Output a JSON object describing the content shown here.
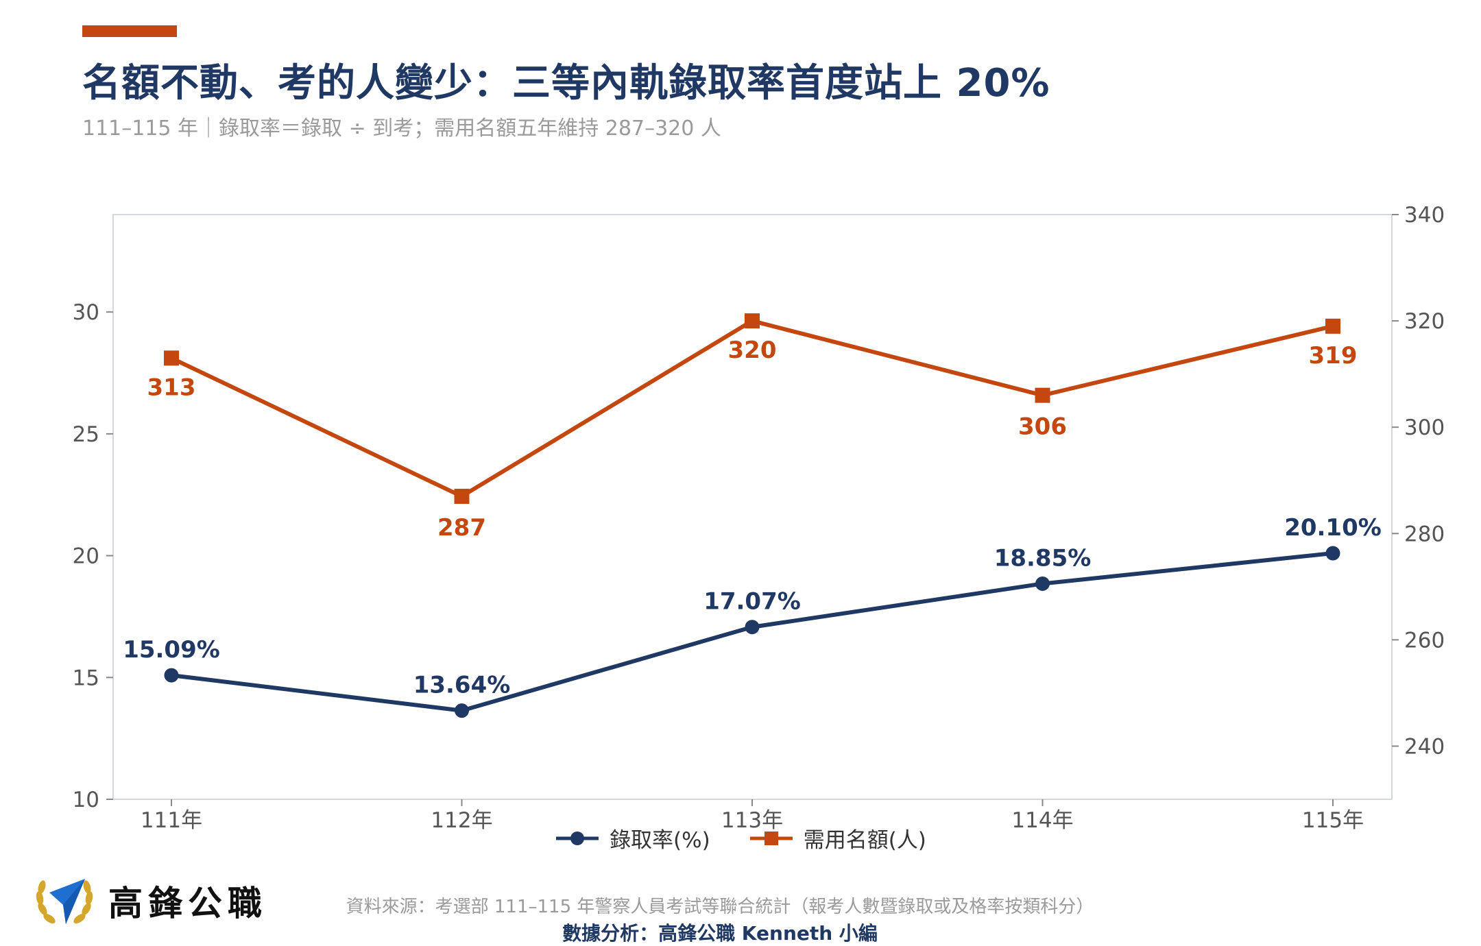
{
  "header": {
    "title": "名額不動、考的人變少：三等內軌錄取率首度站上 20%",
    "subtitle": "111–115 年｜錄取率＝錄取 ÷ 到考；需用名額五年維持 287–320 人"
  },
  "colors": {
    "accent": "#c4470f",
    "navy": "#1f3864",
    "grid_frame": "#d3d7de",
    "axis_text": "#555555"
  },
  "chart_data": {
    "type": "line",
    "categories": [
      "111年",
      "112年",
      "113年",
      "114年",
      "115年"
    ],
    "series": [
      {
        "name": "錄取率(%)",
        "axis": "left",
        "values": [
          15.09,
          13.64,
          17.07,
          18.85,
          20.1
        ],
        "labels": [
          "15.09%",
          "13.64%",
          "17.07%",
          "18.85%",
          "20.10%"
        ],
        "color": "#1f3864",
        "marker": "circle"
      },
      {
        "name": "需用名額(人)",
        "axis": "right",
        "values": [
          313,
          287,
          320,
          306,
          319
        ],
        "labels": [
          "313",
          "287",
          "320",
          "306",
          "319"
        ],
        "color": "#c4470f",
        "marker": "square"
      }
    ],
    "y_left": {
      "ylim": [
        10,
        34
      ],
      "ticks": [
        10,
        15,
        20,
        25,
        30
      ]
    },
    "y_right": {
      "ylim": [
        230,
        340
      ],
      "ticks": [
        240,
        260,
        280,
        300,
        320,
        340
      ]
    },
    "grid": false,
    "legend": "bottom-center"
  },
  "legend": {
    "items": [
      {
        "label": "錄取率(%)",
        "color": "#1f3864",
        "marker": "circle"
      },
      {
        "label": "需用名額(人)",
        "color": "#c4470f",
        "marker": "square"
      }
    ]
  },
  "brand": {
    "name": "高鋒公職",
    "logo_icon": "laurel-paper-plane-icon"
  },
  "footer": {
    "source": "資料來源：考選部 111–115 年警察人員考試等聯合統計（報考人數暨錄取或及格率按類科分）",
    "analysis": "數據分析：高鋒公職 Kenneth 小編"
  }
}
